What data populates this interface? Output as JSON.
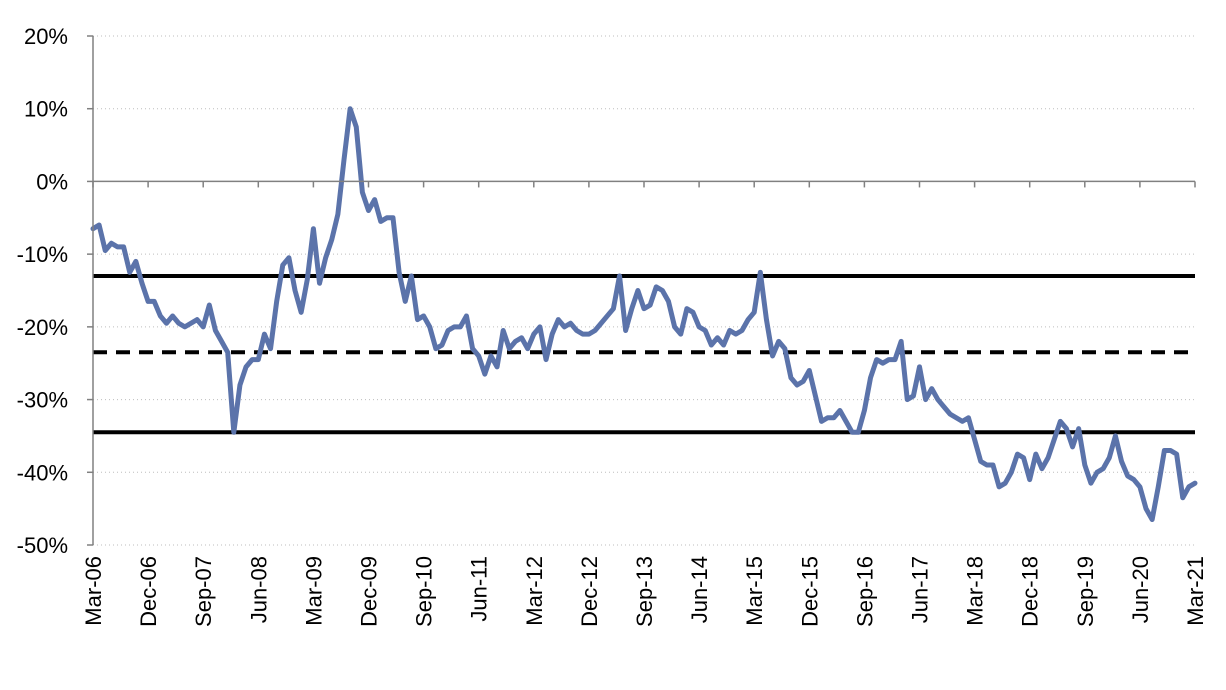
{
  "chart_data": {
    "type": "line",
    "title": "",
    "xlabel": "",
    "ylabel": "",
    "ylim": [
      -50,
      20
    ],
    "y_ticks": [
      20,
      10,
      0,
      -10,
      -20,
      -30,
      -40,
      -50
    ],
    "y_tick_labels": [
      "20%",
      "10%",
      "0%",
      "-10%",
      "-20%",
      "-30%",
      "-40%",
      "-50%"
    ],
    "x_tick_labels": [
      "Mar-06",
      "Dec-06",
      "Sep-07",
      "Jun-08",
      "Mar-09",
      "Dec-09",
      "Sep-10",
      "Jun-11",
      "Mar-12",
      "Dec-12",
      "Sep-13",
      "Jun-14",
      "Mar-15",
      "Dec-15",
      "Sep-16",
      "Jun-17",
      "Mar-18",
      "Dec-18",
      "Sep-19",
      "Jun-20",
      "Mar-21"
    ],
    "grid": "horizontal dotted",
    "legend": "none",
    "series": [
      {
        "color": "#5b73aa",
        "points": [
          [
            "2006-03",
            -6.5
          ],
          [
            "2006-04",
            -6.0
          ],
          [
            "2006-05",
            -9.5
          ],
          [
            "2006-06",
            -8.5
          ],
          [
            "2006-07",
            -9.0
          ],
          [
            "2006-08",
            -9.0
          ],
          [
            "2006-09",
            -12.5
          ],
          [
            "2006-10",
            -11.0
          ],
          [
            "2006-11",
            -14.0
          ],
          [
            "2006-12",
            -16.5
          ],
          [
            "2007-01",
            -16.5
          ],
          [
            "2007-02",
            -18.5
          ],
          [
            "2007-03",
            -19.5
          ],
          [
            "2007-04",
            -18.5
          ],
          [
            "2007-05",
            -19.5
          ],
          [
            "2007-06",
            -20.0
          ],
          [
            "2007-07",
            -19.5
          ],
          [
            "2007-08",
            -19.0
          ],
          [
            "2007-09",
            -20.0
          ],
          [
            "2007-10",
            -17.0
          ],
          [
            "2007-11",
            -20.5
          ],
          [
            "2007-12",
            -22.0
          ],
          [
            "2008-01",
            -23.5
          ],
          [
            "2008-02",
            -34.5
          ],
          [
            "2008-03",
            -28.0
          ],
          [
            "2008-04",
            -25.5
          ],
          [
            "2008-05",
            -24.5
          ],
          [
            "2008-06",
            -24.5
          ],
          [
            "2008-07",
            -21.0
          ],
          [
            "2008-08",
            -23.0
          ],
          [
            "2008-09",
            -16.5
          ],
          [
            "2008-10",
            -11.5
          ],
          [
            "2008-11",
            -10.5
          ],
          [
            "2008-12",
            -15.0
          ],
          [
            "2009-01",
            -18.0
          ],
          [
            "2009-02",
            -13.5
          ],
          [
            "2009-03",
            -6.5
          ],
          [
            "2009-04",
            -14.0
          ],
          [
            "2009-05",
            -10.5
          ],
          [
            "2009-06",
            -8.0
          ],
          [
            "2009-07",
            -4.5
          ],
          [
            "2009-08",
            3.0
          ],
          [
            "2009-09",
            10.0
          ],
          [
            "2009-10",
            7.5
          ],
          [
            "2009-11",
            -1.5
          ],
          [
            "2009-12",
            -4.0
          ],
          [
            "2010-01",
            -2.5
          ],
          [
            "2010-02",
            -5.5
          ],
          [
            "2010-03",
            -5.0
          ],
          [
            "2010-04",
            -5.0
          ],
          [
            "2010-05",
            -12.5
          ],
          [
            "2010-06",
            -16.5
          ],
          [
            "2010-07",
            -13.0
          ],
          [
            "2010-08",
            -19.0
          ],
          [
            "2010-09",
            -18.5
          ],
          [
            "2010-10",
            -20.0
          ],
          [
            "2010-11",
            -23.0
          ],
          [
            "2010-12",
            -22.5
          ],
          [
            "2011-01",
            -20.5
          ],
          [
            "2011-02",
            -20.0
          ],
          [
            "2011-03",
            -20.0
          ],
          [
            "2011-04",
            -18.5
          ],
          [
            "2011-05",
            -23.0
          ],
          [
            "2011-06",
            -24.0
          ],
          [
            "2011-07",
            -26.5
          ],
          [
            "2011-08",
            -24.0
          ],
          [
            "2011-09",
            -25.5
          ],
          [
            "2011-10",
            -20.5
          ],
          [
            "2011-11",
            -23.0
          ],
          [
            "2011-12",
            -22.0
          ],
          [
            "2012-01",
            -21.5
          ],
          [
            "2012-02",
            -23.0
          ],
          [
            "2012-03",
            -21.0
          ],
          [
            "2012-04",
            -20.0
          ],
          [
            "2012-05",
            -24.5
          ],
          [
            "2012-06",
            -21.0
          ],
          [
            "2012-07",
            -19.0
          ],
          [
            "2012-08",
            -20.0
          ],
          [
            "2012-09",
            -19.5
          ],
          [
            "2012-10",
            -20.5
          ],
          [
            "2012-11",
            -21.0
          ],
          [
            "2012-12",
            -21.0
          ],
          [
            "2013-01",
            -20.5
          ],
          [
            "2013-02",
            -19.5
          ],
          [
            "2013-03",
            -18.5
          ],
          [
            "2013-04",
            -17.5
          ],
          [
            "2013-05",
            -13.0
          ],
          [
            "2013-06",
            -20.5
          ],
          [
            "2013-07",
            -17.5
          ],
          [
            "2013-08",
            -15.0
          ],
          [
            "2013-09",
            -17.5
          ],
          [
            "2013-10",
            -17.0
          ],
          [
            "2013-11",
            -14.5
          ],
          [
            "2013-12",
            -15.0
          ],
          [
            "2014-01",
            -16.5
          ],
          [
            "2014-02",
            -20.0
          ],
          [
            "2014-03",
            -21.0
          ],
          [
            "2014-04",
            -17.5
          ],
          [
            "2014-05",
            -18.0
          ],
          [
            "2014-06",
            -20.0
          ],
          [
            "2014-07",
            -20.5
          ],
          [
            "2014-08",
            -22.5
          ],
          [
            "2014-09",
            -21.5
          ],
          [
            "2014-10",
            -22.5
          ],
          [
            "2014-11",
            -20.5
          ],
          [
            "2014-12",
            -21.0
          ],
          [
            "2015-01",
            -20.5
          ],
          [
            "2015-02",
            -19.0
          ],
          [
            "2015-03",
            -18.0
          ],
          [
            "2015-04",
            -12.5
          ],
          [
            "2015-05",
            -19.0
          ],
          [
            "2015-06",
            -24.0
          ],
          [
            "2015-07",
            -22.0
          ],
          [
            "2015-08",
            -23.0
          ],
          [
            "2015-09",
            -27.0
          ],
          [
            "2015-10",
            -28.0
          ],
          [
            "2015-11",
            -27.5
          ],
          [
            "2015-12",
            -26.0
          ],
          [
            "2016-01",
            -29.5
          ],
          [
            "2016-02",
            -33.0
          ],
          [
            "2016-03",
            -32.5
          ],
          [
            "2016-04",
            -32.5
          ],
          [
            "2016-05",
            -31.5
          ],
          [
            "2016-06",
            -33.0
          ],
          [
            "2016-07",
            -34.5
          ],
          [
            "2016-08",
            -34.5
          ],
          [
            "2016-09",
            -31.5
          ],
          [
            "2016-10",
            -27.0
          ],
          [
            "2016-11",
            -24.5
          ],
          [
            "2016-12",
            -25.0
          ],
          [
            "2017-01",
            -24.5
          ],
          [
            "2017-02",
            -24.5
          ],
          [
            "2017-03",
            -22.0
          ],
          [
            "2017-04",
            -30.0
          ],
          [
            "2017-05",
            -29.5
          ],
          [
            "2017-06",
            -25.5
          ],
          [
            "2017-07",
            -30.0
          ],
          [
            "2017-08",
            -28.5
          ],
          [
            "2017-09",
            -30.0
          ],
          [
            "2017-10",
            -31.0
          ],
          [
            "2017-11",
            -32.0
          ],
          [
            "2017-12",
            -32.5
          ],
          [
            "2018-01",
            -33.0
          ],
          [
            "2018-02",
            -32.5
          ],
          [
            "2018-03",
            -35.5
          ],
          [
            "2018-04",
            -38.5
          ],
          [
            "2018-05",
            -39.0
          ],
          [
            "2018-06",
            -39.0
          ],
          [
            "2018-07",
            -42.0
          ],
          [
            "2018-08",
            -41.5
          ],
          [
            "2018-09",
            -40.0
          ],
          [
            "2018-10",
            -37.5
          ],
          [
            "2018-11",
            -38.0
          ],
          [
            "2018-12",
            -41.0
          ],
          [
            "2019-01",
            -37.5
          ],
          [
            "2019-02",
            -39.5
          ],
          [
            "2019-03",
            -38.0
          ],
          [
            "2019-04",
            -35.5
          ],
          [
            "2019-05",
            -33.0
          ],
          [
            "2019-06",
            -34.0
          ],
          [
            "2019-07",
            -36.5
          ],
          [
            "2019-08",
            -34.0
          ],
          [
            "2019-09",
            -39.0
          ],
          [
            "2019-10",
            -41.5
          ],
          [
            "2019-11",
            -40.0
          ],
          [
            "2019-12",
            -39.5
          ],
          [
            "2020-01",
            -38.0
          ],
          [
            "2020-02",
            -35.0
          ],
          [
            "2020-03",
            -38.5
          ],
          [
            "2020-04",
            -40.5
          ],
          [
            "2020-05",
            -41.0
          ],
          [
            "2020-06",
            -42.0
          ],
          [
            "2020-07",
            -45.0
          ],
          [
            "2020-08",
            -46.5
          ],
          [
            "2020-09",
            -42.0
          ],
          [
            "2020-10",
            -37.0
          ],
          [
            "2020-11",
            -37.0
          ],
          [
            "2020-12",
            -37.5
          ],
          [
            "2021-01",
            -43.5
          ],
          [
            "2021-02",
            -42.0
          ],
          [
            "2021-03",
            -41.5
          ]
        ]
      }
    ],
    "reference_lines": [
      {
        "value": -13.0,
        "style": "solid",
        "color": "#000000"
      },
      {
        "value": -23.5,
        "style": "dashed",
        "color": "#000000"
      },
      {
        "value": -34.5,
        "style": "solid",
        "color": "#000000"
      }
    ]
  }
}
